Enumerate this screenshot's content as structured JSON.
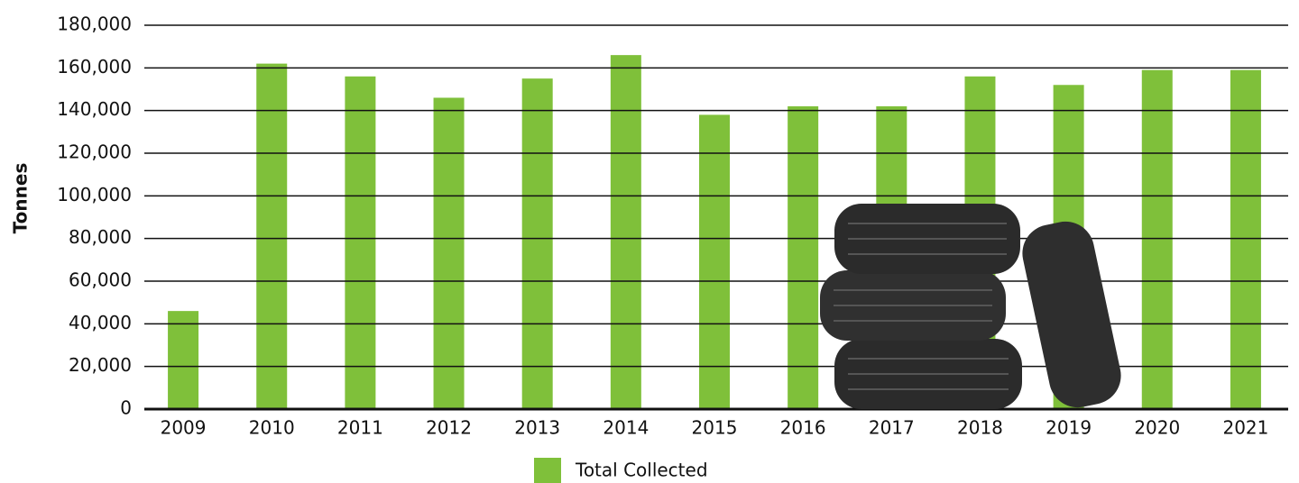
{
  "chart_data": {
    "type": "bar",
    "y_label": "Tonnes",
    "categories": [
      "2009",
      "2010",
      "2011",
      "2012",
      "2013",
      "2014",
      "2015",
      "2016",
      "2017",
      "2018",
      "2019",
      "2020",
      "2021"
    ],
    "series": [
      {
        "name": "Total Collected",
        "color": "#7fc03a",
        "values": [
          46000,
          162000,
          156000,
          146000,
          155000,
          166000,
          138000,
          142000,
          142000,
          156000,
          152000,
          159000,
          159000
        ]
      }
    ],
    "ylim": [
      0,
      180000
    ],
    "yticks": [
      0,
      {
        "value": 20000,
        "label": "20,000"
      },
      {
        "value": 40000,
        "label": "40,000"
      },
      {
        "value": 60000,
        "label": "60,000"
      },
      {
        "value": 80000,
        "label": "80,000"
      },
      {
        "value": 100000,
        "label": "100,000"
      },
      {
        "value": 120000,
        "label": "120,000"
      },
      {
        "value": 140000,
        "label": "140,000"
      },
      {
        "value": 160000,
        "label": "160,000"
      },
      {
        "value": 180000,
        "label": "180,000"
      }
    ],
    "grid": true,
    "legend": "bottom"
  }
}
